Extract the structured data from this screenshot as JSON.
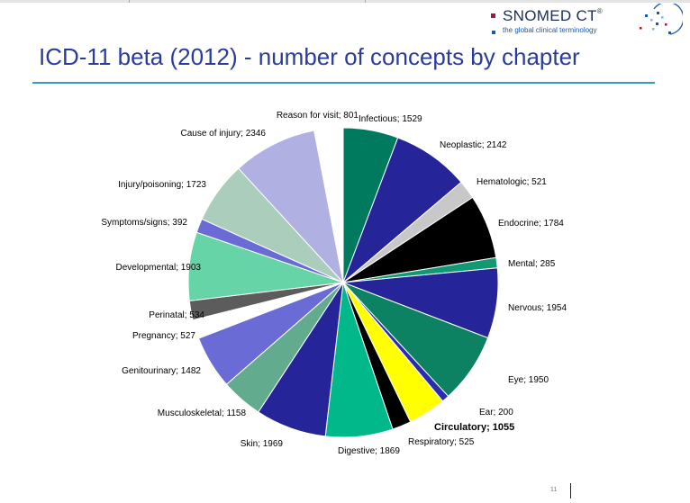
{
  "header": {
    "logo_name": "SNOMED CT",
    "logo_tm": "®",
    "logo_tagline": "the global clinical terminology"
  },
  "slide": {
    "title": "ICD-11 beta (2012) - number of concepts by chapter",
    "page_number": "11"
  },
  "colors": {
    "title": "#2a3c9a",
    "rule": "#3a9bbd"
  },
  "chart_data": {
    "type": "pie",
    "title": "",
    "label_format": "{name}; {value}",
    "slices": [
      {
        "name": "Infectious",
        "value": 1529,
        "color": "#007a5e",
        "explode": 0
      },
      {
        "name": "Neoplastic",
        "value": 2142,
        "color": "#252599",
        "explode": 0
      },
      {
        "name": "Hematologic",
        "value": 521,
        "color": "#c8c8c8",
        "explode": 0
      },
      {
        "name": "Endocrine",
        "value": 1784,
        "color": "#000000",
        "explode": 0
      },
      {
        "name": "Mental",
        "value": 285,
        "color": "#119973",
        "explode": 0
      },
      {
        "name": "Nervous",
        "value": 1954,
        "color": "#252599",
        "explode": 0
      },
      {
        "name": "Eye",
        "value": 1950,
        "color": "#0d8263",
        "explode": 0
      },
      {
        "name": "Ear",
        "value": 200,
        "color": "#2b2bb0",
        "explode": 0
      },
      {
        "name": "Circulatory",
        "value": 1055,
        "color": "#ffff00",
        "explode": 0,
        "bold": true
      },
      {
        "name": "Respiratory",
        "value": 525,
        "color": "#000000",
        "explode": 0
      },
      {
        "name": "Digestive",
        "value": 1869,
        "color": "#00b889",
        "explode": 0
      },
      {
        "name": "Skin",
        "value": 1969,
        "color": "#252599",
        "explode": 0
      },
      {
        "name": "Musculoskeletal",
        "value": 1158,
        "color": "#62ab8f",
        "explode": 0
      },
      {
        "name": "Genitourinary",
        "value": 1482,
        "color": "#6b6bd6",
        "explode": 0
      },
      {
        "name": "Pregnancy",
        "value": 527,
        "color": "#ffffff",
        "explode": 0
      },
      {
        "name": "Perinatal",
        "value": 534,
        "color": "#5c5c5c",
        "explode": 0
      },
      {
        "name": "Developmental",
        "value": 1903,
        "color": "#66d4a6",
        "explode": 0
      },
      {
        "name": "Symptoms/signs",
        "value": 392,
        "color": "#6b6bd6",
        "explode": 0
      },
      {
        "name": "Injury/poisoning",
        "value": 1723,
        "color": "#abcdbb",
        "explode": 0
      },
      {
        "name": "Cause of injury",
        "value": 2346,
        "color": "#b0b0e2",
        "explode": 0
      },
      {
        "name": "Reason for visit",
        "value": 801,
        "color": "#ffffff",
        "explode": 0
      }
    ]
  }
}
